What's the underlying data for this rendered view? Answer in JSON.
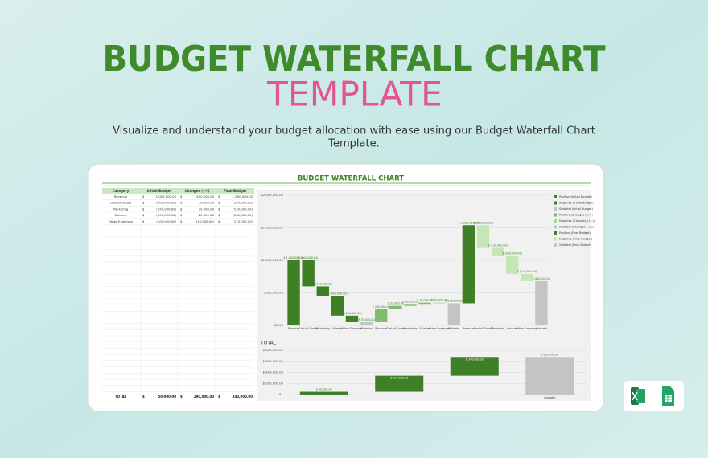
{
  "header": {
    "title": "BUDGET WATERFALL CHART",
    "subtitle": "TEMPLATE",
    "description": [
      "Visualize and understand your budget allocation with ease using our Budget Waterfall Chart",
      "Template."
    ]
  },
  "sheet": {
    "title": "BUDGET WATERFALL CHART",
    "table": {
      "columns": [
        "Category",
        "Initial Budget",
        "Changes (+/-)",
        "Final Budget"
      ],
      "rows": [
        [
          "Revenue",
          "$",
          "1,000,000.00",
          "$",
          "200,000.00",
          "$",
          "1,200,000.00"
        ],
        [
          "Cost of Goods",
          "$",
          "(400,000.00)",
          "$",
          "50,000.00",
          "$",
          "(350,000.00)"
        ],
        [
          "Marketing",
          "$",
          "(150,000.00)",
          "$",
          "30,000.00",
          "$",
          "(120,000.00)"
        ],
        [
          "Salaries",
          "$",
          "(300,000.00)",
          "$",
          "20,000.00",
          "$",
          "(280,000.00)"
        ],
        [
          "Other Expenses",
          "$",
          "(100,000.00)",
          "$",
          "(10,000.00)",
          "$",
          "(110,000.00)"
        ]
      ],
      "total": [
        "TOTAL",
        "$",
        "50,000.00",
        "$",
        "290,000.00",
        "$",
        "340,000.00"
      ]
    }
  },
  "chart_data": [
    {
      "type": "waterfall",
      "categories": [
        "Revenue",
        "Cost of Goods",
        "Marketing",
        "Salaries",
        "Other Expenses",
        "Subtotal",
        "Revenue",
        "Cost of Goods",
        "Marketing",
        "Salaries",
        "Other Expenses",
        "Subtotal",
        "Revenue",
        "Cost of Goods",
        "Marketing",
        "Salaries",
        "Other Expenses",
        "Subtotal"
      ],
      "values": [
        1000000,
        -400000,
        -150000,
        -300000,
        -100000,
        50000,
        200000,
        50000,
        30000,
        20000,
        -10000,
        340000,
        1200000,
        -350000,
        -120000,
        -280000,
        -110000,
        680000
      ],
      "value_labels": [
        "$ 1,000,000.00",
        "$ (400,000.00)",
        "$ (150,000.00)",
        "$ (300,000.00)",
        "$ (100,000.00)",
        "$ 50,000.00",
        "$ 200,000.00",
        "$ 50,000.00",
        "$ 30,000.00",
        "$ 20,000.00",
        "$ (10,000.00)",
        "$ 340,000.00",
        "$ 1,200,000.00",
        "$ (350,000.00)",
        "$ (120,000.00)",
        "$ (280,000.00)",
        "$ (110,000.00)",
        "$ 680,000.00"
      ],
      "measure": [
        "relative",
        "relative",
        "relative",
        "relative",
        "relative",
        "total",
        "relative",
        "relative",
        "relative",
        "relative",
        "relative",
        "total",
        "relative",
        "relative",
        "relative",
        "relative",
        "relative",
        "total"
      ],
      "colors": [
        "#3f7f26",
        "#3f7f26",
        "#3f7f26",
        "#3f7f26",
        "#3f7f26",
        "#c4c4c4",
        "#7cbf68",
        "#7cbf68",
        "#7cbf68",
        "#7cbf68",
        "#a8d898",
        "#c4c4c4",
        "#3f7f26",
        "#c6e6b8",
        "#c6e6b8",
        "#c6e6b8",
        "#c6e6b8",
        "#c4c4c4"
      ],
      "ylim": [
        0,
        2000000
      ],
      "yticks": [
        {
          "value": 0,
          "label": "$0.00"
        },
        {
          "value": 500000,
          "label": "$500,000.00"
        },
        {
          "value": 1000000,
          "label": "$1,000,000.00"
        },
        {
          "value": 1500000,
          "label": "$1,500,000.00"
        },
        {
          "value": 2000000,
          "label": "$2,000,000.00"
        }
      ],
      "grid": true,
      "legend": "right",
      "legend_items": [
        {
          "name": "Positive (Initial Budget)",
          "color": "#3f7f26"
        },
        {
          "name": "Negative (Initial Budget)",
          "color": "#3f7f26"
        },
        {
          "name": "Subtotal (Initial Budget)",
          "color": "#c4c4c4"
        },
        {
          "name": "Positive (Changes (+/-))",
          "color": "#7cbf68"
        },
        {
          "name": "Negative (Changes (+/-))",
          "color": "#a8d898"
        },
        {
          "name": "Subtotal (Changes (+/-))",
          "color": "#c4c4c4"
        },
        {
          "name": "Positive (Final Budget)",
          "color": "#3f7f26"
        },
        {
          "name": "Negative (Final Budget)",
          "color": "#c6e6b8"
        },
        {
          "name": "Subtotal (Final Budget)",
          "color": "#c4c4c4"
        }
      ]
    },
    {
      "type": "waterfall",
      "title": "TOTAL",
      "categories": [
        null,
        null,
        null,
        "Subtotal"
      ],
      "values": [
        50000,
        290000,
        340000,
        680000
      ],
      "value_labels": [
        "$ 50,000.00",
        "$ 290,000.00",
        "$ 340,000.00",
        "$ 680,000.00"
      ],
      "measure": [
        "relative",
        "relative",
        "relative",
        "total"
      ],
      "colors": [
        "#3f7f26",
        "#3f7f26",
        "#3f7f26",
        "#c4c4c4"
      ],
      "ylim": [
        0,
        800000
      ],
      "yticks": [
        {
          "value": 0,
          "label": "$ -"
        },
        {
          "value": 200000,
          "label": "$ 200,000.00"
        },
        {
          "value": 400000,
          "label": "$ 400,000.00"
        },
        {
          "value": 600000,
          "label": "$ 600,000.00"
        },
        {
          "value": 800000,
          "label": "$ 800,000.00"
        }
      ],
      "grid": true
    }
  ]
}
